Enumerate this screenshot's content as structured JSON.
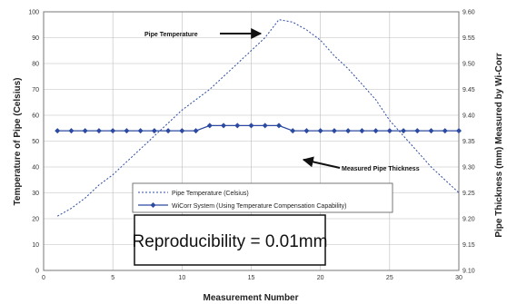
{
  "chart_data": {
    "type": "line",
    "title": "",
    "xlabel": "Measurement Number",
    "ylabel": "Temperature of Pipe (Celsius)",
    "y2label": "Pipe Thickness (mm) Measured by Wi-Corr",
    "xlim": [
      0,
      30
    ],
    "ylim": [
      0,
      100
    ],
    "y2lim": [
      9.1,
      9.6
    ],
    "xticks": [
      0,
      5,
      10,
      15,
      20,
      25,
      30
    ],
    "yticks": [
      0,
      10,
      20,
      30,
      40,
      50,
      60,
      70,
      80,
      90,
      100
    ],
    "y2ticks": [
      "9.10",
      "9.15",
      "9.20",
      "9.25",
      "9.30",
      "9.35",
      "9.40",
      "9.45",
      "9.50",
      "9.55",
      "9.60"
    ],
    "grid": true,
    "legend_position": "center",
    "series": [
      {
        "name": "Pipe Temperature (Celsius)",
        "axis": "left",
        "style": "dashed",
        "color": "#2b4aa0",
        "x": [
          1,
          2,
          3,
          4,
          5,
          6,
          7,
          8,
          9,
          10,
          11,
          12,
          13,
          14,
          15,
          16,
          17,
          18,
          19,
          20,
          21,
          22,
          23,
          24,
          25,
          26,
          27,
          28,
          29,
          30
        ],
        "values": [
          21,
          24,
          28,
          33,
          37,
          42,
          47,
          52,
          57,
          62,
          66,
          70,
          75,
          80,
          85,
          90,
          97,
          96,
          93,
          89,
          83,
          78,
          72,
          66,
          58,
          52,
          46,
          40,
          35,
          30
        ]
      },
      {
        "name": "WiCorr System (Using Temperature Compensation Capability)",
        "axis": "right",
        "style": "solid-diamond",
        "color": "#2b4aa0",
        "x": [
          1,
          2,
          3,
          4,
          5,
          6,
          7,
          8,
          9,
          10,
          11,
          12,
          13,
          14,
          15,
          16,
          17,
          18,
          19,
          20,
          21,
          22,
          23,
          24,
          25,
          26,
          27,
          28,
          29,
          30
        ],
        "values": [
          9.37,
          9.37,
          9.37,
          9.37,
          9.37,
          9.37,
          9.37,
          9.37,
          9.37,
          9.37,
          9.37,
          9.38,
          9.38,
          9.38,
          9.38,
          9.38,
          9.38,
          9.37,
          9.37,
          9.37,
          9.37,
          9.37,
          9.37,
          9.37,
          9.37,
          9.37,
          9.37,
          9.37,
          9.37,
          9.37
        ]
      }
    ],
    "annotations": [
      {
        "text": "Pipe Temperature",
        "x": 16,
        "y": 90
      },
      {
        "text": "Measured Pipe Thickness",
        "x": 18,
        "y": 54
      }
    ]
  },
  "callout": {
    "text": "Reproducibility = 0.01mm"
  }
}
